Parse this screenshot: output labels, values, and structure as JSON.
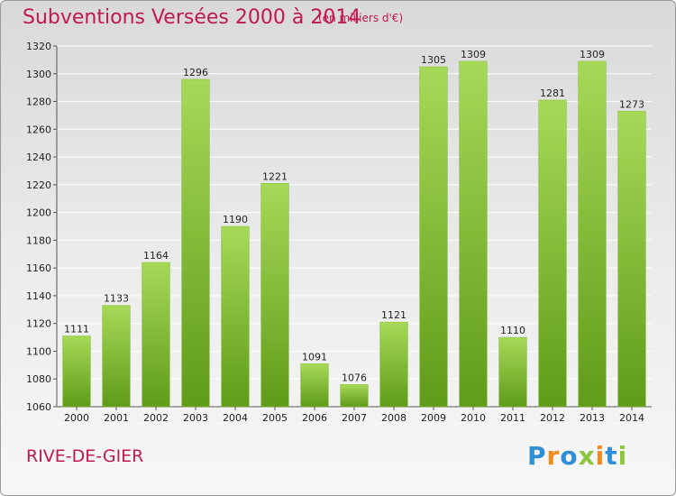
{
  "chart_data": {
    "type": "bar",
    "title": "Subventions Versées 2000 à 2014",
    "subtitle": "(en milliers d'€)",
    "categories": [
      "2000",
      "2001",
      "2002",
      "2003",
      "2004",
      "2005",
      "2006",
      "2007",
      "2008",
      "2009",
      "2010",
      "2011",
      "2012",
      "2013",
      "2014"
    ],
    "values": [
      1111,
      1133,
      1164,
      1296,
      1190,
      1221,
      1091,
      1076,
      1121,
      1305,
      1309,
      1110,
      1281,
      1309,
      1273
    ],
    "ylim": [
      1060,
      1320
    ],
    "yticks": [
      1060,
      1080,
      1100,
      1120,
      1140,
      1160,
      1180,
      1200,
      1220,
      1240,
      1260,
      1280,
      1300,
      1320
    ],
    "grid": true,
    "bar_color_light": "#a6d957",
    "bar_color_dark": "#5f9c17"
  },
  "place": "RIVE-DE-GIER",
  "logo": {
    "text": "Proxiti",
    "letters": [
      {
        "char": "P",
        "color": "#2e8fd6"
      },
      {
        "char": "r",
        "color": "#f08c1e"
      },
      {
        "char": "o",
        "color": "#2e8fd6"
      },
      {
        "char": "x",
        "color": "#8cc63f"
      },
      {
        "char": "i",
        "color": "#f08c1e"
      },
      {
        "char": "t",
        "color": "#2e8fd6"
      },
      {
        "char": "i",
        "color": "#8cc63f"
      }
    ]
  },
  "colors": {
    "accent": "#c1184f",
    "axis": "#555555",
    "grid": "#ffffff"
  }
}
